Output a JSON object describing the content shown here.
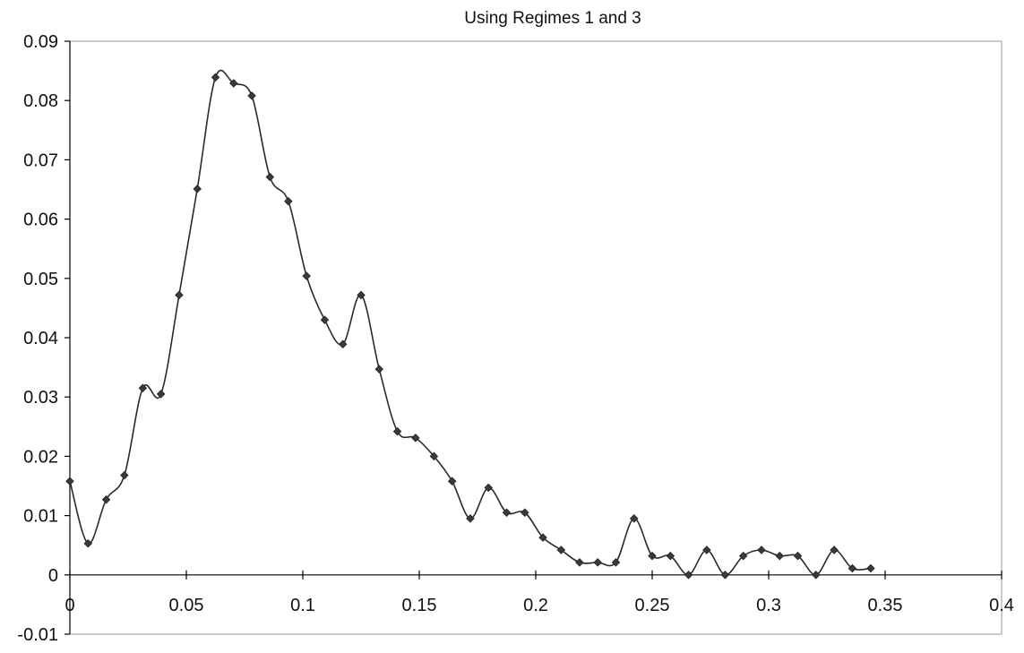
{
  "chart_data": {
    "type": "line",
    "title": "Using Regimes 1 and 3",
    "xlabel": "",
    "ylabel": "",
    "xlim": [
      0,
      0.4
    ],
    "ylim": [
      -0.01,
      0.09
    ],
    "x_ticks": [
      "0",
      "0.05",
      "0.1",
      "0.15",
      "0.2",
      "0.25",
      "0.3",
      "0.35",
      "0.4"
    ],
    "y_ticks": [
      "-0.01",
      "0",
      "0.01",
      "0.02",
      "0.03",
      "0.04",
      "0.05",
      "0.06",
      "0.07",
      "0.08",
      "0.09"
    ],
    "grid": false,
    "legend": "none",
    "marker": "diamond",
    "smooth": true,
    "line_color": "#2a2a2a",
    "series": [
      {
        "x": [
          0,
          0.0078,
          0.0156,
          0.0234,
          0.0313,
          0.0391,
          0.0469,
          0.0547,
          0.0625,
          0.0703,
          0.0781,
          0.0859,
          0.0938,
          0.1016,
          0.1094,
          0.1172,
          0.125,
          0.1328,
          0.1406,
          0.1484,
          0.1563,
          0.1641,
          0.1719,
          0.1797,
          0.1875,
          0.1953,
          0.2031,
          0.2109,
          0.2188,
          0.2266,
          0.2344,
          0.2422,
          0.25,
          0.2578,
          0.2656,
          0.2734,
          0.2813,
          0.2891,
          0.2969,
          0.3047,
          0.3125,
          0.3203,
          0.3281,
          0.3359,
          0.3438
        ],
        "y": [
          0.0158,
          0.0053,
          0.0127,
          0.0168,
          0.0315,
          0.0305,
          0.0472,
          0.0651,
          0.0839,
          0.0829,
          0.0808,
          0.0671,
          0.063,
          0.0504,
          0.043,
          0.0389,
          0.0472,
          0.0347,
          0.0242,
          0.0231,
          0.02,
          0.0158,
          0.0095,
          0.0147,
          0.0105,
          0.0105,
          0.0063,
          0.0042,
          0.0021,
          0.0021,
          0.0021,
          0.0095,
          0.0032,
          0.0032,
          0.0,
          0.0042,
          0.0,
          0.0032,
          0.0042,
          0.0032,
          0.0032,
          0.0,
          0.0042,
          0.0011,
          0.0011
        ]
      }
    ]
  }
}
